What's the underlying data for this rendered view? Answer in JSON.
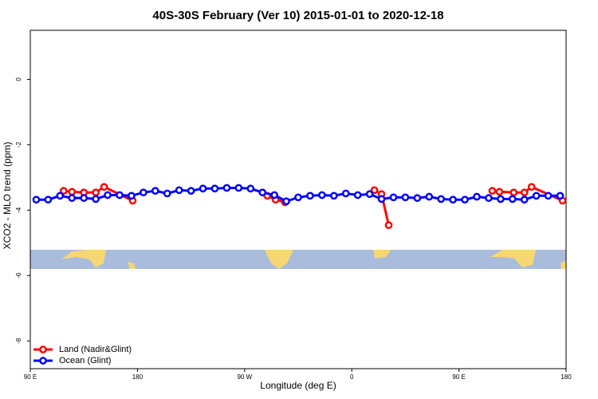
{
  "chart_data": {
    "type": "line",
    "title": "40S-30S February (Ver 10)   2015-01-01 to 2020-12-18",
    "x_label": "Longitude (deg E)",
    "y_label": "XCO2 - MLO trend (ppm)",
    "xlim": [
      90,
      540
    ],
    "xticks": [
      {
        "value": 90,
        "label": "90 E"
      },
      {
        "value": 180,
        "label": "180"
      },
      {
        "value": 270,
        "label": "90 W"
      },
      {
        "value": 360,
        "label": "0"
      },
      {
        "value": 450,
        "label": "90 E"
      },
      {
        "value": 540,
        "label": "180"
      }
    ],
    "ylim": [
      -8.85,
      1.5
    ],
    "yticks": [
      0,
      -2,
      -4,
      -6,
      -8
    ],
    "legend": "bottom-left",
    "series": [
      {
        "name": "Land (Nadir&Glint)",
        "color": "#ff0000",
        "x": [
          118,
          125,
          135,
          145,
          152,
          176,
          null,
          289,
          296,
          304,
          null,
          379,
          385,
          391,
          null,
          478,
          484,
          496,
          505,
          511,
          537
        ],
        "values": [
          -3.41,
          -3.44,
          -3.46,
          -3.46,
          -3.29,
          -3.71,
          null,
          -3.56,
          -3.68,
          -3.76,
          null,
          -3.39,
          -3.51,
          -4.46,
          null,
          -3.41,
          -3.44,
          -3.46,
          -3.46,
          -3.29,
          -3.71
        ]
      },
      {
        "name": "Ocean (Glint)",
        "color": "#0000ff",
        "x": [
          95,
          105,
          115,
          125,
          135,
          145,
          155,
          165,
          175,
          185,
          195,
          205,
          215,
          225,
          235,
          245,
          255,
          265,
          275,
          285,
          295,
          305,
          315,
          325,
          335,
          345,
          355,
          365,
          375,
          385,
          395,
          405,
          415,
          425,
          435,
          445,
          455,
          465,
          475,
          485,
          495,
          505,
          515,
          525,
          535
        ],
        "values": [
          -3.68,
          -3.68,
          -3.56,
          -3.63,
          -3.63,
          -3.66,
          -3.54,
          -3.54,
          -3.56,
          -3.46,
          -3.41,
          -3.49,
          -3.39,
          -3.41,
          -3.34,
          -3.34,
          -3.32,
          -3.32,
          -3.34,
          -3.46,
          -3.54,
          -3.73,
          -3.61,
          -3.56,
          -3.54,
          -3.56,
          -3.49,
          -3.54,
          -3.51,
          -3.66,
          -3.61,
          -3.61,
          -3.63,
          -3.59,
          -3.66,
          -3.68,
          -3.68,
          -3.59,
          -3.63,
          -3.66,
          -3.66,
          -3.68,
          -3.56,
          -3.56,
          -3.56
        ]
      }
    ]
  }
}
